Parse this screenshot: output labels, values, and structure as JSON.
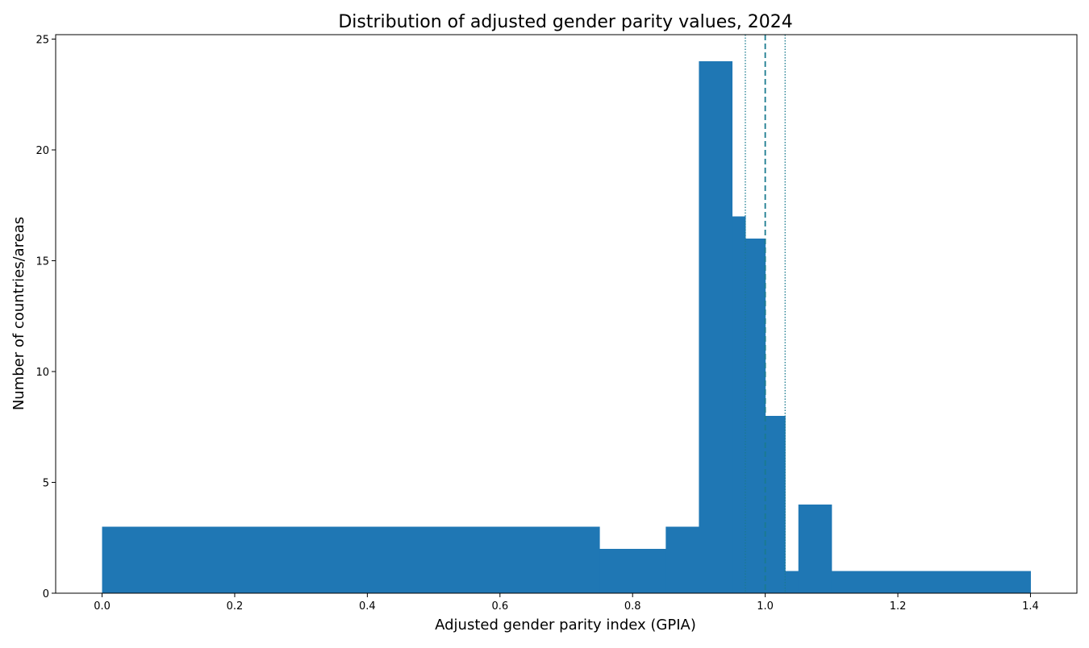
{
  "chart_data": {
    "type": "bar",
    "title": "Distribution of adjusted gender parity values, 2024",
    "xlabel": "Adjusted gender parity index (GPIA)",
    "ylabel": "Number of countries/areas",
    "xlim": [
      -0.07,
      1.47
    ],
    "ylim": [
      0,
      25.2
    ],
    "xticks": [
      "0.0",
      "0.2",
      "0.4",
      "0.6",
      "0.8",
      "1.0",
      "1.2",
      "1.4"
    ],
    "yticks": [
      "0",
      "5",
      "10",
      "15",
      "20",
      "25"
    ],
    "grid": false,
    "bar_color": "#1f77b4",
    "bins": [
      {
        "start": 0.0,
        "end": 0.75,
        "count": 3
      },
      {
        "start": 0.75,
        "end": 0.85,
        "count": 2
      },
      {
        "start": 0.85,
        "end": 0.9,
        "count": 3
      },
      {
        "start": 0.9,
        "end": 0.95,
        "count": 24
      },
      {
        "start": 0.95,
        "end": 0.97,
        "count": 17
      },
      {
        "start": 0.97,
        "end": 1.0,
        "count": 16
      },
      {
        "start": 1.0,
        "end": 1.03,
        "count": 8
      },
      {
        "start": 1.03,
        "end": 1.05,
        "count": 1
      },
      {
        "start": 1.05,
        "end": 1.1,
        "count": 4
      },
      {
        "start": 1.1,
        "end": 1.4,
        "count": 1
      }
    ],
    "reference_lines": [
      {
        "x": 0.97,
        "style": "dotted",
        "color": "#1a7b8f"
      },
      {
        "x": 1.0,
        "style": "dashed",
        "color": "#1a7b8f"
      },
      {
        "x": 1.03,
        "style": "dotted",
        "color": "#1a7b8f"
      }
    ]
  }
}
